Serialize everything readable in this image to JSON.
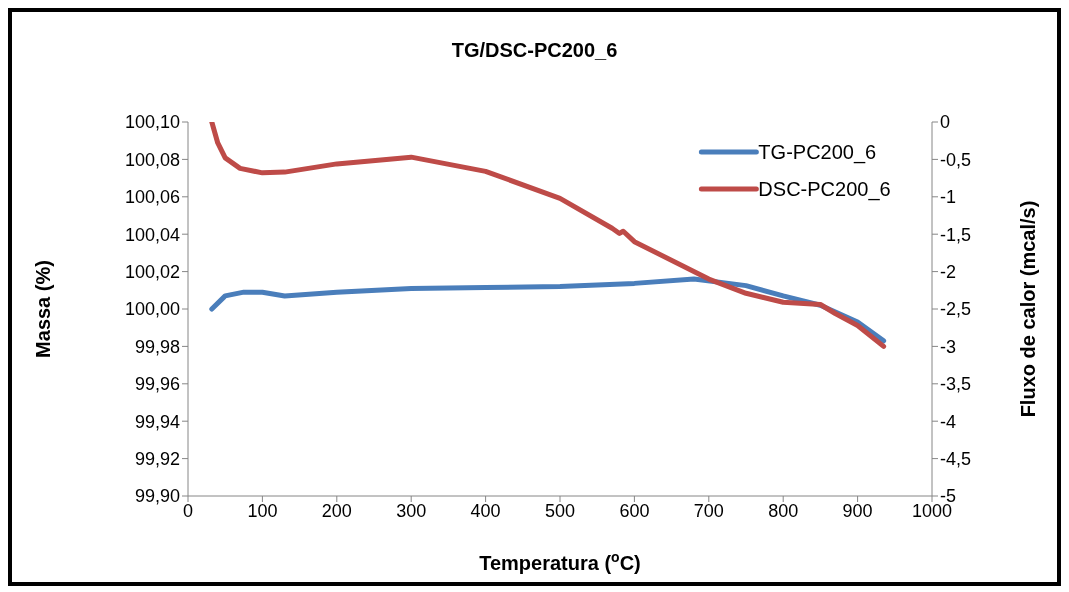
{
  "chart_data": {
    "type": "line",
    "title": "TG/DSC-PC200_6",
    "xlabel": "Temperatura ($^{o}$C)",
    "ylabel": "Massa (%)",
    "y2label": "Fluxo de calor (mcal/s)",
    "xlim": [
      0,
      1000
    ],
    "xticks": [
      0,
      100,
      200,
      300,
      400,
      500,
      600,
      700,
      800,
      900,
      1000
    ],
    "ylim": [
      99.9,
      100.1
    ],
    "yticks": [
      {
        "value": 99.9,
        "label": "99,90"
      },
      {
        "value": 99.92,
        "label": "99,92"
      },
      {
        "value": 99.94,
        "label": "99,94"
      },
      {
        "value": 99.96,
        "label": "99,96"
      },
      {
        "value": 99.98,
        "label": "99,98"
      },
      {
        "value": 100.0,
        "label": "100,00"
      },
      {
        "value": 100.02,
        "label": "100,02"
      },
      {
        "value": 100.04,
        "label": "100,04"
      },
      {
        "value": 100.06,
        "label": "100,06"
      },
      {
        "value": 100.08,
        "label": "100,08"
      },
      {
        "value": 100.1,
        "label": "100,10"
      }
    ],
    "y2lim": [
      -5,
      0
    ],
    "y2ticks": [
      -5,
      {
        "value": -4.5,
        "label": "-4,5"
      },
      -4,
      {
        "value": -3.5,
        "label": "-3,5"
      },
      -3,
      {
        "value": -2.5,
        "label": "-2,5"
      },
      -2,
      {
        "value": -1.5,
        "label": "-1,5"
      },
      -1,
      {
        "value": -0.5,
        "label": "-0,5"
      },
      0
    ],
    "grid": false,
    "legend": "top right",
    "marker": "none",
    "line_style": "solid",
    "series": [
      {
        "name": "TG-PC200_6",
        "color": "#4a7ebb",
        "x": [
          32,
          50,
          75,
          100,
          130,
          200,
          300,
          400,
          500,
          600,
          680,
          750,
          800,
          850,
          900,
          935
        ],
        "values": [
          100.0,
          100.007,
          100.009,
          100.009,
          100.007,
          100.009,
          100.011,
          100.0115,
          100.012,
          100.0137,
          100.016,
          100.0125,
          100.007,
          100.002,
          99.993,
          99.983
        ]
      },
      {
        "name": "DSC-PC200_6",
        "color": "#be4b48",
        "axis": "y2",
        "x": [
          32,
          40,
          50,
          70,
          100,
          130,
          200,
          300,
          400,
          500,
          570,
          580,
          585,
          600,
          700,
          750,
          800,
          850,
          870,
          900,
          935
        ],
        "values": [
          0,
          -0.28,
          -0.48,
          -0.62,
          -0.68,
          -0.67,
          -0.56,
          -0.47,
          -0.66,
          -1.02,
          -1.42,
          -1.49,
          -1.46,
          -1.6,
          -2.1,
          -2.29,
          -2.41,
          -2.44,
          -2.56,
          -2.72,
          -3.0
        ]
      }
    ]
  }
}
